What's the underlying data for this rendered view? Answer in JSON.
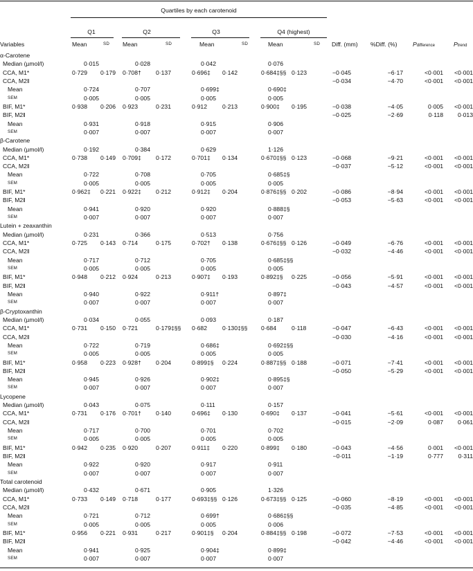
{
  "header": {
    "spanner": "Quartiles by each carotenoid",
    "quartiles": [
      "Q1",
      "Q2",
      "Q3",
      "Q4 (highest)"
    ],
    "variables": "Variables",
    "mean": "Mean",
    "sd": "SD",
    "diff": "Diff. (mm)",
    "pct_diff": "%Diff. (%)",
    "p_difference": "P",
    "p_difference_sub": "difference",
    "p_trend": "P",
    "p_trend_sub": "trend"
  },
  "sections": [
    {
      "name": "α-Carotene",
      "rows": [
        {
          "label": "Median (µmol/l)",
          "type": "single",
          "values": [
            "0·015",
            "0·028",
            "0·042",
            "0·076"
          ]
        },
        {
          "label": "CCA, M1*",
          "type": "msd",
          "values": [
            [
              "0·729",
              "0·179"
            ],
            [
              "0·708†",
              "0·137"
            ],
            [
              "0·696‡",
              "0·142"
            ],
            [
              "0·684‡§§",
              "0·123"
            ]
          ],
          "stats": [
            "−0·045",
            "−6·17",
            "<0·001",
            "<0·001"
          ]
        },
        {
          "label": "CCA, M2‖",
          "type": "stats",
          "stats": [
            "−0·034",
            "−4·70",
            "<0·001",
            "<0·001"
          ]
        },
        {
          "label": "Mean",
          "type": "single",
          "indent": 2,
          "values": [
            "0·724",
            "0·707",
            "0·699‡",
            "0·690‡"
          ]
        },
        {
          "label": "SEM",
          "type": "single",
          "indent": 2,
          "sc": true,
          "values": [
            "0·005",
            "0·005",
            "0·005",
            "0·005"
          ]
        },
        {
          "label": "BIF, M1*",
          "type": "msd",
          "values": [
            [
              "0·938",
              "0·206"
            ],
            [
              "0·923",
              "0·231"
            ],
            [
              "0·912",
              "0·213"
            ],
            [
              "0·900‡",
              "0·195"
            ]
          ],
          "stats": [
            "−0·038",
            "−4·05",
            "0·005",
            "<0·001"
          ]
        },
        {
          "label": "BIF, M2‖",
          "type": "stats",
          "stats": [
            "−0·025",
            "−2·69",
            "0·118",
            "0·013"
          ]
        },
        {
          "label": "Mean",
          "type": "single",
          "indent": 2,
          "values": [
            "0·931",
            "0·918",
            "0·915",
            "0·906"
          ]
        },
        {
          "label": "SEM",
          "type": "single",
          "indent": 2,
          "sc": true,
          "values": [
            "0·007",
            "0·007",
            "0·007",
            "0·007"
          ]
        }
      ]
    },
    {
      "name": "β-Carotene",
      "rows": [
        {
          "label": "Median (µmol/l)",
          "type": "single",
          "values": [
            "0·192",
            "0·384",
            "0·629",
            "1·126"
          ]
        },
        {
          "label": "CCA, M1*",
          "type": "msd",
          "values": [
            [
              "0·738",
              "0·149"
            ],
            [
              "0·709‡",
              "0·172"
            ],
            [
              "0·701‡",
              "0·134"
            ],
            [
              "0·670‡§§",
              "0·123"
            ]
          ],
          "stats": [
            "−0·068",
            "−9·21",
            "<0·001",
            "<0·001"
          ]
        },
        {
          "label": "CCA, M2‖",
          "type": "stats",
          "stats": [
            "−0·037",
            "−5·12",
            "<0·001",
            "<0·001"
          ]
        },
        {
          "label": "Mean",
          "type": "single",
          "indent": 2,
          "values": [
            "0·722",
            "0·708",
            "0·705",
            "0·685‡§"
          ]
        },
        {
          "label": "SEM",
          "type": "single",
          "indent": 2,
          "sc": true,
          "values": [
            "0·005",
            "0·005",
            "0·005",
            "0·005"
          ]
        },
        {
          "label": "BIF, M1*",
          "type": "msd",
          "values": [
            [
              "0·962‡",
              "0·221"
            ],
            [
              "0·922‡",
              "0·212"
            ],
            [
              "0·912‡",
              "0·204"
            ],
            [
              "0·876‡§§",
              "0·202"
            ]
          ],
          "stats": [
            "−0·086",
            "−8·94",
            "<0·001",
            "<0·001"
          ]
        },
        {
          "label": "BIF, M2‖",
          "type": "stats",
          "stats": [
            "−0·053",
            "−5·63",
            "<0·001",
            "<0·001"
          ]
        },
        {
          "label": "Mean",
          "type": "single",
          "indent": 2,
          "values": [
            "0·941",
            "0·920",
            "0·920",
            "0·888‡§"
          ]
        },
        {
          "label": "SEM",
          "type": "single",
          "indent": 2,
          "sc": true,
          "values": [
            "0·007",
            "0·007",
            "0·007",
            "0·007"
          ]
        }
      ]
    },
    {
      "name": "Lutein + zeaxanthin",
      "rows": [
        {
          "label": "Median (µmol/l)",
          "type": "single",
          "values": [
            "0·231",
            "0·366",
            "0·513",
            "0·756"
          ]
        },
        {
          "label": "CCA, M1*",
          "type": "msd",
          "values": [
            [
              "0·725",
              "0·143"
            ],
            [
              "0·714",
              "0·175"
            ],
            [
              "0·702†",
              "0·138"
            ],
            [
              "0·676‡§§",
              "0·126"
            ]
          ],
          "stats": [
            "−0·049",
            "−6·76",
            "<0·001",
            "<0·001"
          ]
        },
        {
          "label": "CCA, M2‖",
          "type": "stats",
          "stats": [
            "−0·032",
            "−4·46",
            "<0·001",
            "<0·001"
          ]
        },
        {
          "label": "Mean",
          "type": "single",
          "indent": 2,
          "values": [
            "0·717",
            "0·712",
            "0·705",
            "0·685‡§§"
          ]
        },
        {
          "label": "SEM",
          "type": "single",
          "indent": 2,
          "sc": true,
          "values": [
            "0·005",
            "0·005",
            "0·005",
            "0·005"
          ]
        },
        {
          "label": "BIF, M1*",
          "type": "msd",
          "values": [
            [
              "0·948",
              "0·212"
            ],
            [
              "0·924",
              "0·213"
            ],
            [
              "0·907‡",
              "0·193"
            ],
            [
              "0·892‡§",
              "0·225"
            ]
          ],
          "stats": [
            "−0·056",
            "−5·91",
            "<0·001",
            "<0·001"
          ]
        },
        {
          "label": "BIF, M2‖",
          "type": "stats",
          "stats": [
            "−0·043",
            "−4·57",
            "<0·001",
            "<0·001"
          ]
        },
        {
          "label": "Mean",
          "type": "single",
          "indent": 2,
          "values": [
            "0·940",
            "0·922",
            "0·911†",
            "0·897‡"
          ]
        },
        {
          "label": "SEM",
          "type": "single",
          "indent": 2,
          "sc": true,
          "values": [
            "0·007",
            "0·007",
            "0·007",
            "0·007"
          ]
        }
      ]
    },
    {
      "name": "β-Cryptoxanthin",
      "rows": [
        {
          "label": "Median (µmol/l)",
          "type": "single",
          "values": [
            "0·034",
            "0·055",
            "0·093",
            "0·187"
          ]
        },
        {
          "label": "CCA, M1*",
          "type": "msd",
          "values": [
            [
              "0·731",
              "0·150"
            ],
            [
              "0·721",
              "0·179‡§§"
            ],
            [
              "0·682",
              "0·130‡§§"
            ],
            [
              "0·684",
              "0·118"
            ]
          ],
          "stats": [
            "−0·047",
            "−6·43",
            "<0·001",
            "<0·001"
          ]
        },
        {
          "label": "CCA, M2‖",
          "type": "stats",
          "stats": [
            "−0·030",
            "−4·16",
            "<0·001",
            "<0·001"
          ]
        },
        {
          "label": "Mean",
          "type": "single",
          "indent": 2,
          "values": [
            "0·722",
            "0·719",
            "0·686‡",
            "0·692‡§§"
          ]
        },
        {
          "label": "SEM",
          "type": "single",
          "indent": 2,
          "sc": true,
          "values": [
            "0·005",
            "0·005",
            "0·005",
            "0·005"
          ]
        },
        {
          "label": "BIF, M1*",
          "type": "msd",
          "values": [
            [
              "0·958",
              "0·223"
            ],
            [
              "0·928†",
              "0·204"
            ],
            [
              "0·899‡§",
              "0·224"
            ],
            [
              "0·887‡§§",
              "0·188"
            ]
          ],
          "stats": [
            "−0·071",
            "−7·41",
            "<0·001",
            "<0·001"
          ]
        },
        {
          "label": "BIF, M2‖",
          "type": "stats",
          "stats": [
            "−0·050",
            "−5·29",
            "<0·001",
            "<0·001"
          ]
        },
        {
          "label": "Mean",
          "type": "single",
          "indent": 2,
          "values": [
            "0·945",
            "0·926",
            "0·902‡",
            "0·895‡§"
          ]
        },
        {
          "label": "SEM",
          "type": "single",
          "indent": 2,
          "sc": true,
          "values": [
            "0·007",
            "0·007",
            "0·007",
            "0·007"
          ]
        }
      ]
    },
    {
      "name": "Lycopene",
      "rows": [
        {
          "label": "Median (µmol/l)",
          "type": "single",
          "values": [
            "0·043",
            "0·075",
            "0·111",
            "0·157"
          ]
        },
        {
          "label": "CCA, M1*",
          "type": "msd",
          "values": [
            [
              "0·731",
              "0·176"
            ],
            [
              "0·701†",
              "0·140"
            ],
            [
              "0·696‡",
              "0·130"
            ],
            [
              "0·690‡",
              "0·137"
            ]
          ],
          "stats": [
            "−0·041",
            "−5·61",
            "<0·001",
            "<0·001"
          ]
        },
        {
          "label": "CCA, M2‖",
          "type": "stats",
          "stats": [
            "−0·015",
            "−2·09",
            "0·087",
            "0·061"
          ]
        },
        {
          "label": "Mean",
          "type": "single",
          "indent": 2,
          "values": [
            "0·717",
            "0·700",
            "0·701",
            "0·702"
          ]
        },
        {
          "label": "SEM",
          "type": "single",
          "indent": 2,
          "sc": true,
          "values": [
            "0·005",
            "0·005",
            "0·005",
            "0·005"
          ]
        },
        {
          "label": "BIF, M1*",
          "type": "msd",
          "values": [
            [
              "0·942",
              "0·235"
            ],
            [
              "0·920",
              "0·207"
            ],
            [
              "0·911‡",
              "0·220"
            ],
            [
              "0·899‡",
              "0·180"
            ]
          ],
          "stats": [
            "−0·043",
            "−4·56",
            "0·001",
            "<0·001"
          ]
        },
        {
          "label": "BIF, M2‖",
          "type": "stats",
          "stats": [
            "−0·011",
            "−1·19",
            "0·777",
            "0·311"
          ]
        },
        {
          "label": "Mean",
          "type": "single",
          "indent": 2,
          "values": [
            "0·922",
            "0·920",
            "0·917",
            "0·911"
          ]
        },
        {
          "label": "SEM",
          "type": "single",
          "indent": 2,
          "sc": true,
          "values": [
            "0·007",
            "0·007",
            "0·007",
            "0·007"
          ]
        }
      ]
    },
    {
      "name": "Total carotenoid",
      "rows": [
        {
          "label": "Median (µmol/l)",
          "type": "single",
          "values": [
            "0·432",
            "0·671",
            "0·905",
            "1·326"
          ]
        },
        {
          "label": "CCA, M1*",
          "type": "msd",
          "values": [
            [
              "0·733",
              "0·149"
            ],
            [
              "0·718",
              "0·177"
            ],
            [
              "0·693‡§§",
              "0·126"
            ],
            [
              "0·673‡§§",
              "0·125"
            ]
          ],
          "stats": [
            "−0·060",
            "−8·19",
            "<0·001",
            "<0·001"
          ]
        },
        {
          "label": "CCA, M2‖",
          "type": "stats",
          "stats": [
            "−0·035",
            "−4·85",
            "<0·001",
            "<0·001"
          ]
        },
        {
          "label": "Mean",
          "type": "single",
          "indent": 2,
          "values": [
            "0·721",
            "0·712",
            "0·699†",
            "0·686‡§§"
          ]
        },
        {
          "label": "SEM",
          "type": "single",
          "indent": 2,
          "sc": true,
          "values": [
            "0·005",
            "0·005",
            "0·005",
            "0·006"
          ]
        },
        {
          "label": "BIF, M1*",
          "type": "msd",
          "values": [
            [
              "0·956",
              "0·221"
            ],
            [
              "0·931",
              "0·217"
            ],
            [
              "0·901‡§",
              "0·204"
            ],
            [
              "0·884‡§§",
              "0·198"
            ]
          ],
          "stats": [
            "−0·072",
            "−7·53",
            "<0·001",
            "<0·001"
          ]
        },
        {
          "label": "BIF, M2‖",
          "type": "stats",
          "stats": [
            "−0·042",
            "−4·46",
            "<0·001",
            "<0·001"
          ]
        },
        {
          "label": "Mean",
          "type": "single",
          "indent": 2,
          "values": [
            "0·941",
            "0·925",
            "0·904‡",
            "0·899‡"
          ]
        },
        {
          "label": "SEM",
          "type": "single",
          "indent": 2,
          "sc": true,
          "values": [
            "0·007",
            "0·007",
            "0·007",
            "0·007"
          ]
        }
      ]
    }
  ]
}
